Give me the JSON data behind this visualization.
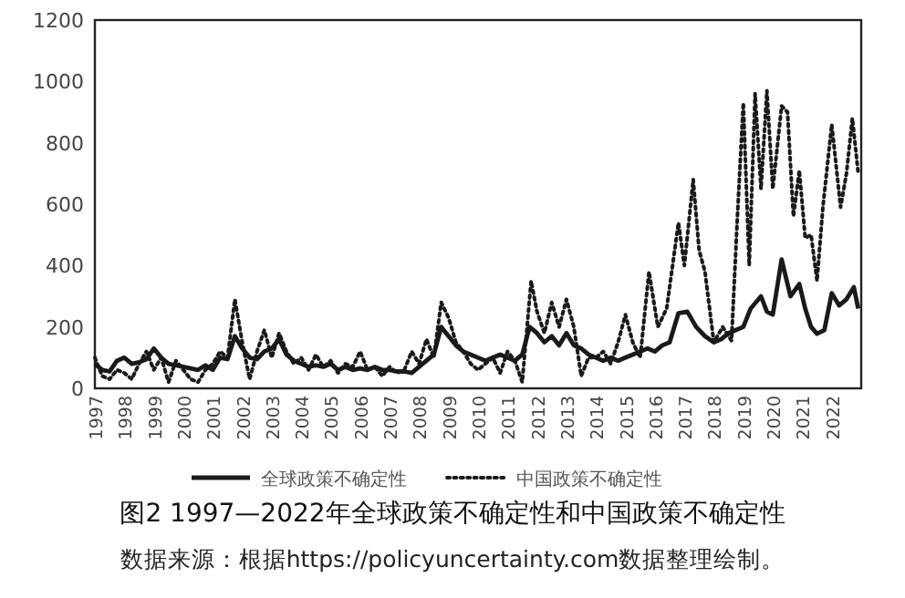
{
  "chart_data": {
    "type": "line",
    "title": "图2 1997—2022年全球政策不确定性和中国政策不确定性",
    "annotations": [
      "数据来源：根据https://policyuncertainty.com数据整理绘制。"
    ],
    "xlim": [
      1997,
      2023
    ],
    "xticks": [
      1997,
      1998,
      1999,
      2000,
      2001,
      2002,
      2003,
      2004,
      2005,
      2006,
      2007,
      2008,
      2009,
      2010,
      2011,
      2012,
      2013,
      2014,
      2015,
      2016,
      2017,
      2018,
      2019,
      2020,
      2021,
      2022
    ],
    "ylim": [
      0,
      1200
    ],
    "yticks": [
      0,
      200,
      400,
      600,
      800,
      1000,
      1200
    ],
    "grid": false,
    "legend": "bottom",
    "marker": "none",
    "series": [
      {
        "name": "全球政策不确定性",
        "color": "#1a1a1a",
        "line_style": "solid",
        "x": [
          1997,
          1997.25,
          1997.5,
          1997.75,
          1998,
          1998.25,
          1998.5,
          1998.75,
          1999,
          1999.25,
          1999.5,
          1999.75,
          2000,
          2000.25,
          2000.5,
          2000.75,
          2001,
          2001.25,
          2001.5,
          2001.75,
          2002,
          2002.25,
          2002.5,
          2002.75,
          2003,
          2003.25,
          2003.5,
          2003.75,
          2004,
          2004.25,
          2004.5,
          2004.75,
          2005,
          2005.25,
          2005.5,
          2005.75,
          2006,
          2006.25,
          2006.5,
          2006.75,
          2007,
          2007.25,
          2007.5,
          2007.75,
          2008,
          2008.25,
          2008.5,
          2008.75,
          2009,
          2009.25,
          2009.5,
          2009.75,
          2010,
          2010.25,
          2010.5,
          2010.75,
          2011,
          2011.25,
          2011.5,
          2011.75,
          2012,
          2012.25,
          2012.5,
          2012.75,
          2013,
          2013.25,
          2013.5,
          2013.75,
          2014,
          2014.25,
          2014.5,
          2014.75,
          2015,
          2015.25,
          2015.5,
          2015.75,
          2016,
          2016.25,
          2016.5,
          2016.8,
          2017.1,
          2017.4,
          2017.7,
          2018,
          2018.25,
          2018.5,
          2018.75,
          2019,
          2019.25,
          2019.6,
          2019.8,
          2020,
          2020.3,
          2020.6,
          2020.9,
          2021.1,
          2021.3,
          2021.5,
          2021.75,
          2022,
          2022.25,
          2022.5,
          2022.75,
          2022.9
        ],
        "values": [
          80,
          60,
          55,
          90,
          100,
          80,
          85,
          95,
          130,
          100,
          80,
          75,
          70,
          65,
          60,
          75,
          60,
          100,
          95,
          170,
          130,
          100,
          95,
          120,
          130,
          160,
          110,
          90,
          80,
          70,
          75,
          70,
          80,
          60,
          70,
          60,
          65,
          60,
          70,
          60,
          60,
          55,
          55,
          50,
          70,
          90,
          110,
          200,
          170,
          140,
          120,
          110,
          100,
          90,
          100,
          110,
          100,
          90,
          110,
          200,
          180,
          150,
          170,
          140,
          180,
          140,
          130,
          110,
          100,
          90,
          100,
          90,
          100,
          110,
          120,
          130,
          120,
          140,
          150,
          245,
          250,
          200,
          170,
          150,
          160,
          180,
          190,
          200,
          260,
          300,
          250,
          240,
          420,
          300,
          340,
          260,
          200,
          178,
          190,
          310,
          270,
          290,
          330,
          260
        ]
      },
      {
        "name": "中国政策不确定性",
        "color": "#1a1a1a",
        "line_style": "dotted",
        "x": [
          1997,
          1997.25,
          1997.5,
          1997.75,
          1998,
          1998.25,
          1998.5,
          1998.75,
          1999,
          1999.25,
          1999.5,
          1999.75,
          2000,
          2000.25,
          2000.5,
          2000.75,
          2001,
          2001.25,
          2001.5,
          2001.75,
          2002,
          2002.25,
          2002.5,
          2002.75,
          2003,
          2003.25,
          2003.5,
          2003.75,
          2004,
          2004.25,
          2004.5,
          2004.75,
          2005,
          2005.25,
          2005.5,
          2005.75,
          2006,
          2006.25,
          2006.5,
          2006.75,
          2007,
          2007.25,
          2007.5,
          2007.75,
          2008,
          2008.25,
          2008.5,
          2008.75,
          2009,
          2009.25,
          2009.5,
          2009.75,
          2010,
          2010.25,
          2010.5,
          2010.75,
          2011,
          2011.25,
          2011.5,
          2011.8,
          2012,
          2012.25,
          2012.5,
          2012.75,
          2013,
          2013.25,
          2013.5,
          2013.75,
          2014,
          2014.25,
          2014.5,
          2014.75,
          2015,
          2015.25,
          2015.5,
          2015.8,
          2016.1,
          2016.4,
          2016.8,
          2017,
          2017.3,
          2017.5,
          2017.7,
          2018,
          2018.3,
          2018.6,
          2018.8,
          2019,
          2019.2,
          2019.4,
          2019.6,
          2019.8,
          2020,
          2020.3,
          2020.5,
          2020.7,
          2020.9,
          2021.1,
          2021.3,
          2021.5,
          2021.7,
          2022,
          2022.3,
          2022.5,
          2022.7,
          2022.9
        ],
        "values": [
          100,
          40,
          30,
          60,
          50,
          30,
          80,
          120,
          60,
          100,
          20,
          90,
          60,
          30,
          20,
          60,
          80,
          120,
          100,
          290,
          150,
          30,
          120,
          190,
          100,
          180,
          120,
          80,
          100,
          60,
          110,
          70,
          90,
          50,
          80,
          70,
          120,
          60,
          70,
          40,
          70,
          50,
          60,
          120,
          80,
          160,
          100,
          280,
          230,
          150,
          120,
          80,
          60,
          80,
          100,
          50,
          120,
          90,
          20,
          350,
          250,
          180,
          280,
          200,
          290,
          200,
          40,
          100,
          100,
          120,
          80,
          150,
          240,
          150,
          100,
          380,
          200,
          260,
          540,
          400,
          680,
          450,
          380,
          150,
          200,
          155,
          560,
          930,
          400,
          960,
          650,
          970,
          650,
          920,
          900,
          560,
          710,
          490,
          500,
          350,
          590,
          860,
          590,
          700,
          880,
          700
        ]
      }
    ]
  }
}
